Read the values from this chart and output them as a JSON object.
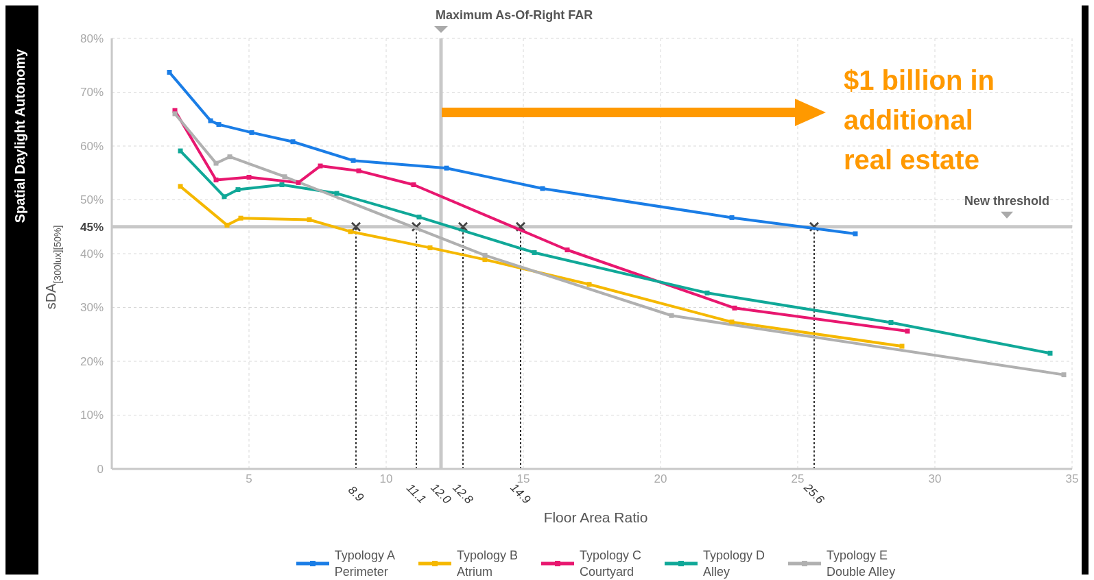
{
  "chart_data": {
    "type": "line",
    "title": "Spatial Daylight Autonomy",
    "ylabel": "sDA$_{[300lux][50%]}$",
    "xlabel": "Floor Area Ratio",
    "xlim": [
      0,
      35
    ],
    "xticks": [
      5,
      10,
      15,
      20,
      25,
      30,
      35
    ],
    "ylim": [
      0,
      80
    ],
    "yticks": [
      0,
      {
        "value": 10,
        "label": "10%"
      },
      {
        "value": 20,
        "label": "20%"
      },
      {
        "value": 30,
        "label": "30%"
      },
      {
        "value": 40,
        "label": "40%"
      },
      {
        "value": 45,
        "label": "45%"
      },
      {
        "value": 50,
        "label": "50%"
      },
      {
        "value": 60,
        "label": "60%"
      },
      {
        "value": 70,
        "label": "70%"
      },
      {
        "value": 80,
        "label": "80%"
      }
    ],
    "grid": true,
    "legend": "bottom",
    "marker": "square",
    "line_style": "solid",
    "series": [
      {
        "name": "Typology A\nPerimeter",
        "color": "#1a7de6",
        "x": [
          2.1,
          3.6,
          3.9,
          5.1,
          6.6,
          8.8,
          12.2,
          15.7,
          22.6,
          27.1
        ],
        "values": [
          73.7,
          64.7,
          64.0,
          62.5,
          60.8,
          57.3,
          55.9,
          52.1,
          46.7,
          43.7
        ]
      },
      {
        "name": "Typology B\nAtrium",
        "color": "#f5b800",
        "x": [
          2.5,
          4.2,
          4.7,
          7.2,
          8.7,
          11.6,
          13.6,
          17.4,
          22.6,
          28.8
        ],
        "values": [
          52.5,
          45.3,
          46.6,
          46.3,
          44.1,
          41.1,
          38.9,
          34.3,
          27.3,
          22.8
        ]
      },
      {
        "name": "Typology C\nCourtyard",
        "color": "#e8176f",
        "x": [
          2.3,
          3.8,
          5.0,
          6.8,
          7.6,
          9.0,
          11.0,
          16.6,
          22.7,
          29.0
        ],
        "values": [
          66.6,
          53.7,
          54.2,
          53.2,
          56.3,
          55.4,
          52.8,
          40.7,
          29.9,
          25.6
        ]
      },
      {
        "name": "Typology D\nAlley",
        "color": "#10a898",
        "x": [
          2.5,
          4.1,
          4.6,
          6.2,
          8.2,
          11.2,
          15.4,
          21.7,
          28.4,
          34.2
        ],
        "values": [
          59.1,
          50.6,
          51.9,
          52.8,
          51.2,
          46.8,
          40.2,
          32.7,
          27.2,
          21.5
        ]
      },
      {
        "name": "Typology E\nDouble Alley",
        "color": "#b0b0b0",
        "x": [
          2.3,
          3.8,
          4.3,
          6.3,
          13.6,
          20.4,
          34.7
        ],
        "values": [
          66.0,
          56.8,
          58.0,
          54.3,
          39.7,
          28.5,
          17.5
        ]
      }
    ],
    "ref_lines": [
      {
        "axis": "y",
        "value": 45,
        "label": "New threshold",
        "color": "#c8c8c8",
        "line_style": "solid"
      },
      {
        "axis": "x",
        "value": 12.0,
        "label": "Maximum As-Of-Right FAR",
        "color": "#c8c8c8",
        "line_style": "solid"
      },
      {
        "axis": "x",
        "value": 8.9,
        "label": "8.9",
        "color": "#333333",
        "line_style": "dotted"
      },
      {
        "axis": "x",
        "value": 11.1,
        "label": "11.1",
        "color": "#333333",
        "line_style": "dotted"
      },
      {
        "axis": "x",
        "value": 12.8,
        "label": "12.8",
        "color": "#333333",
        "line_style": "dotted"
      },
      {
        "axis": "x",
        "value": 14.9,
        "label": "14.9",
        "color": "#333333",
        "line_style": "dotted"
      },
      {
        "axis": "x",
        "value": 25.6,
        "label": "25.6",
        "color": "#333333",
        "line_style": "dotted"
      }
    ],
    "annotations": [
      {
        "text": "12.0",
        "x": 12.0,
        "y": 0
      },
      "$1 billion in additional real estate"
    ]
  }
}
